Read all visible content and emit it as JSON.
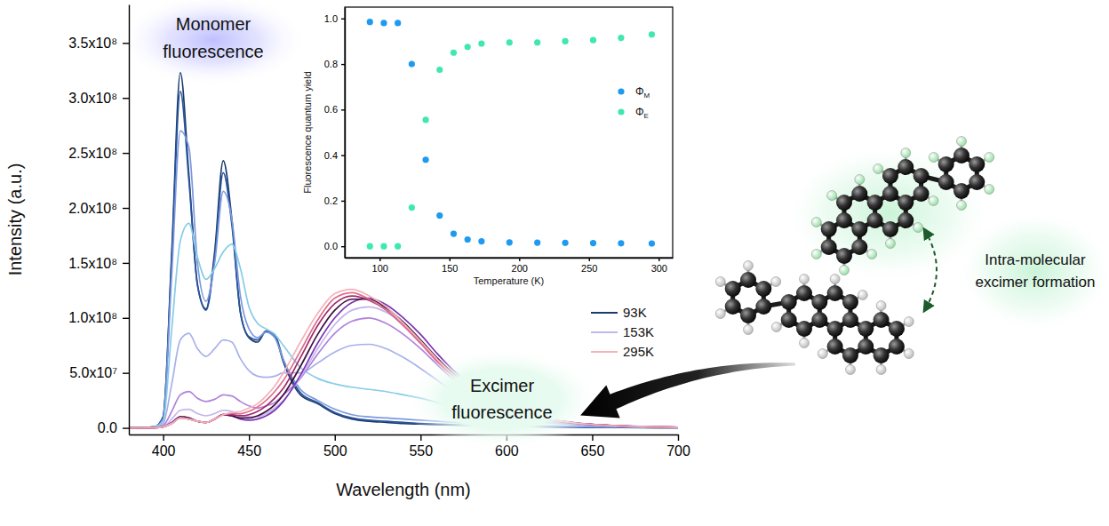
{
  "chart_data": [
    {
      "type": "line",
      "x_label": "Wavelength (nm)",
      "y_label": "Intensity (a.u.)",
      "x": [
        380,
        395,
        400,
        405,
        410,
        415,
        420,
        425,
        430,
        435,
        440,
        445,
        450,
        455,
        460,
        465,
        470,
        480,
        490,
        500,
        510,
        520,
        530,
        540,
        550,
        560,
        570,
        580,
        600,
        620,
        640,
        660,
        680,
        700
      ],
      "xlim": [
        380,
        700
      ],
      "xticks": [
        400,
        450,
        500,
        550,
        600,
        650,
        700
      ],
      "ylim": [
        -6000000,
        385000000
      ],
      "yticks": [
        {
          "value": 0,
          "label": "0.0"
        },
        {
          "value": 50000000,
          "label": "5.0x10⁷"
        },
        {
          "value": 100000000,
          "label": "1.0x10⁸"
        },
        {
          "value": 150000000,
          "label": "1.5x10⁸"
        },
        {
          "value": 200000000,
          "label": "2.0x10⁸"
        },
        {
          "value": 250000000,
          "label": "2.5x10⁸"
        },
        {
          "value": 300000000,
          "label": "3.0x10⁸"
        },
        {
          "value": 350000000,
          "label": "3.5x10⁸"
        }
      ],
      "grid": false,
      "legend": "right",
      "series": [
        {
          "name": "93K",
          "color": "#1b3a6e",
          "values": [
            0,
            1000000.0,
            10000000.0,
            160000000.0,
            323000000.0,
            230000000.0,
            130000000.0,
            108000000.0,
            160000000.0,
            243000000.0,
            190000000.0,
            105000000.0,
            82000000.0,
            78000000.0,
            88000000.0,
            84000000.0,
            60000000.0,
            30000000.0,
            22000000.0,
            13000000.0,
            8000000.0,
            6000000.0,
            5000000.0,
            4000000.0,
            3500000.0,
            3000000.0,
            2500000.0,
            2000000.0,
            1500000.0,
            1000000.0,
            600000.0,
            400000.0,
            200000.0,
            100000.0
          ]
        },
        {
          "color": "#27559a",
          "values": [
            0,
            1000000.0,
            10000000.0,
            155000000.0,
            306000000.0,
            225000000.0,
            130000000.0,
            107000000.0,
            155000000.0,
            232000000.0,
            185000000.0,
            105000000.0,
            83000000.0,
            80000000.0,
            88000000.0,
            85000000.0,
            62000000.0,
            32000000.0,
            23000000.0,
            14000000.0,
            9000000.0,
            7000000.0,
            6000000.0,
            5000000.0,
            4000000.0,
            3500000.0,
            3000000.0,
            2500000.0,
            1800000.0,
            1200000.0,
            800000.0,
            500000.0,
            300000.0,
            100000.0
          ]
        },
        {
          "color": "#7d98df",
          "values": [
            0,
            1000000.0,
            8000000.0,
            140000000.0,
            270000000.0,
            255000000.0,
            150000000.0,
            115000000.0,
            150000000.0,
            215000000.0,
            190000000.0,
            120000000.0,
            90000000.0,
            82000000.0,
            87000000.0,
            82000000.0,
            62000000.0,
            35000000.0,
            25000000.0,
            17000000.0,
            12000000.0,
            10000000.0,
            9000000.0,
            8000000.0,
            7000000.0,
            6000000.0,
            5000000.0,
            4000000.0,
            3000000.0,
            2000000.0,
            1200000.0,
            800000.0,
            400000.0,
            200000.0
          ]
        },
        {
          "color": "#86cbe8",
          "values": [
            0,
            1000000.0,
            6000000.0,
            90000000.0,
            170000000.0,
            186000000.0,
            155000000.0,
            135000000.0,
            145000000.0,
            160000000.0,
            167000000.0,
            145000000.0,
            110000000.0,
            95000000.0,
            90000000.0,
            85000000.0,
            75000000.0,
            55000000.0,
            45000000.0,
            40000000.0,
            37000000.0,
            35000000.0,
            33000000.0,
            30000000.0,
            27000000.0,
            23000000.0,
            19000000.0,
            15000000.0,
            9000000.0,
            5000000.0,
            3000000.0,
            1500000.0,
            800000.0,
            400000.0
          ]
        },
        {
          "color": "#a8b1ea",
          "values": [
            0,
            500000.0,
            4000000.0,
            40000000.0,
            80000000.0,
            86000000.0,
            72000000.0,
            65000000.0,
            72000000.0,
            80000000.0,
            78000000.0,
            63000000.0,
            52000000.0,
            47000000.0,
            46000000.0,
            47000000.0,
            50000000.0,
            50000000.0,
            59000000.0,
            69000000.0,
            75000000.0,
            76000000.0,
            72000000.0,
            64000000.0,
            54000000.0,
            43000000.0,
            32000000.0,
            24000000.0,
            12000000.0,
            6000000.0,
            3000000.0,
            1500000.0,
            800000.0,
            400000.0
          ]
        },
        {
          "color": "#b183dc",
          "values": [
            0,
            300000.0,
            2000000.0,
            15000000.0,
            30000000.0,
            33000000.0,
            27000000.0,
            24000000.0,
            26000000.0,
            30000000.0,
            29000000.0,
            24000000.0,
            20000000.0,
            18000000.0,
            20000000.0,
            23000000.0,
            30000000.0,
            45000000.0,
            67000000.0,
            86000000.0,
            97000000.0,
            100000000.0,
            95000000.0,
            85000000.0,
            72000000.0,
            57000000.0,
            43000000.0,
            32000000.0,
            16000000.0,
            8000000.0,
            4000000.0,
            2000000.0,
            1000000.0,
            500000.0
          ]
        },
        {
          "name": "153K",
          "color": "#c3b6ee",
          "values": [
            0,
            200000.0,
            1000000.0,
            8000000.0,
            16000000.0,
            17000000.0,
            13000000.0,
            11000000.0,
            13000000.0,
            16000000.0,
            15000000.0,
            12000000.0,
            10000000.0,
            10000000.0,
            13000000.0,
            18000000.0,
            25000000.0,
            46000000.0,
            72000000.0,
            94000000.0,
            107000000.0,
            110000000.0,
            105000000.0,
            94000000.0,
            79000000.0,
            63000000.0,
            47000000.0,
            35000000.0,
            18000000.0,
            9000000.0,
            4500000.0,
            2200000.0,
            1100000.0,
            600000.0
          ]
        },
        {
          "color": "#7b34b4",
          "values": [
            0,
            200000.0,
            1000000.0,
            5000000.0,
            10000000.0,
            9000000.0,
            6000000.0,
            5000000.0,
            8000000.0,
            12000000.0,
            11000000.0,
            8000000.0,
            7000000.0,
            8000000.0,
            11000000.0,
            16000000.0,
            24000000.0,
            48000000.0,
            77000000.0,
            100000000.0,
            114000000.0,
            118000000.0,
            112000000.0,
            100000000.0,
            85000000.0,
            67000000.0,
            51000000.0,
            38000000.0,
            19000000.0,
            9000000.0,
            4700000.0,
            2400000.0,
            1200000.0,
            600000.0
          ]
        },
        {
          "color": "#3d0f3c",
          "values": [
            0,
            200000.0,
            1000000.0,
            4000000.0,
            10000000.0,
            9000000.0,
            6000000.0,
            5000000.0,
            8000000.0,
            12000000.0,
            11000000.0,
            9000000.0,
            9000000.0,
            11000000.0,
            15000000.0,
            21000000.0,
            30000000.0,
            56000000.0,
            85000000.0,
            107000000.0,
            117000000.0,
            117000000.0,
            109000000.0,
            96000000.0,
            80000000.0,
            63000000.0,
            48000000.0,
            36000000.0,
            18000000.0,
            9000000.0,
            4500000.0,
            2300000.0,
            1200000.0,
            600000.0
          ]
        },
        {
          "color": "#a32a6a",
          "values": [
            0,
            200000.0,
            1000000.0,
            4000000.0,
            9000000.0,
            8000000.0,
            6000000.0,
            5000000.0,
            8000000.0,
            12000000.0,
            12000000.0,
            11000000.0,
            12000000.0,
            15000000.0,
            20000000.0,
            27000000.0,
            36000000.0,
            64000000.0,
            93000000.0,
            113000000.0,
            120000000.0,
            116000000.0,
            107000000.0,
            93000000.0,
            77000000.0,
            60000000.0,
            46000000.0,
            34000000.0,
            17000000.0,
            8500000.0,
            4300000.0,
            2200000.0,
            1100000.0,
            500000.0
          ]
        },
        {
          "color": "#dd6f8f",
          "values": [
            0,
            200000.0,
            1000000.0,
            4000000.0,
            9000000.0,
            8000000.0,
            6000000.0,
            5000000.0,
            8000000.0,
            12000000.0,
            13000000.0,
            13000000.0,
            15000000.0,
            19000000.0,
            25000000.0,
            33000000.0,
            43000000.0,
            70000000.0,
            98000000.0,
            118000000.0,
            123000000.0,
            117000000.0,
            107000000.0,
            93000000.0,
            77000000.0,
            60000000.0,
            46000000.0,
            34000000.0,
            17000000.0,
            8500000.0,
            4300000.0,
            2200000.0,
            1100000.0,
            500000.0
          ]
        },
        {
          "name": "295K",
          "color": "#f3b3ba",
          "values": [
            0,
            200000.0,
            1000000.0,
            4000000.0,
            9000000.0,
            8000000.0,
            6000000.0,
            5000000.0,
            8000000.0,
            12000000.0,
            14000000.0,
            15000000.0,
            18000000.0,
            22000000.0,
            29000000.0,
            38000000.0,
            50000000.0,
            78000000.0,
            104000000.0,
            122000000.0,
            126000000.0,
            120000000.0,
            110000000.0,
            95000000.0,
            79000000.0,
            62000000.0,
            47000000.0,
            35000000.0,
            18000000.0,
            9000000.0,
            4500000.0,
            2300000.0,
            1100000.0,
            500000.0
          ]
        }
      ],
      "annotations": [
        {
          "lines": [
            "Monomer",
            "fluorescence"
          ]
        },
        {
          "lines": [
            "Excimer",
            "fluorescence"
          ]
        },
        {
          "lines": [
            "Intra-molecular",
            "excimer formation"
          ]
        }
      ]
    },
    {
      "type": "scatter",
      "x_label": "Temperature (K)",
      "y_label": "Fluorescence quantum yield",
      "x": [
        93,
        103,
        113,
        123,
        133,
        143,
        153,
        163,
        173,
        193,
        213,
        233,
        253,
        273,
        295
      ],
      "xlim": [
        75,
        310
      ],
      "xticks": [
        100,
        150,
        200,
        250,
        300
      ],
      "ylim": [
        -0.05,
        1.05
      ],
      "yticks": [
        {
          "value": 0,
          "label": "0.0"
        },
        0.2,
        0.4,
        0.6,
        0.8,
        {
          "value": 1,
          "label": "1.0"
        }
      ],
      "grid": false,
      "legend": "right",
      "marker": "circle",
      "series": [
        {
          "name": "ΦM",
          "color": "#1e9af0",
          "values": [
            0.985,
            0.98,
            0.98,
            0.8,
            0.38,
            0.135,
            0.055,
            0.03,
            0.022,
            0.017,
            0.016,
            0.015,
            0.014,
            0.013,
            0.012
          ]
        },
        {
          "name": "ΦE",
          "color": "#3fe8b0",
          "values": [
            0,
            0,
            0,
            0.17,
            0.555,
            0.775,
            0.85,
            0.875,
            0.89,
            0.895,
            0.895,
            0.9,
            0.905,
            0.915,
            0.93
          ]
        }
      ]
    }
  ]
}
